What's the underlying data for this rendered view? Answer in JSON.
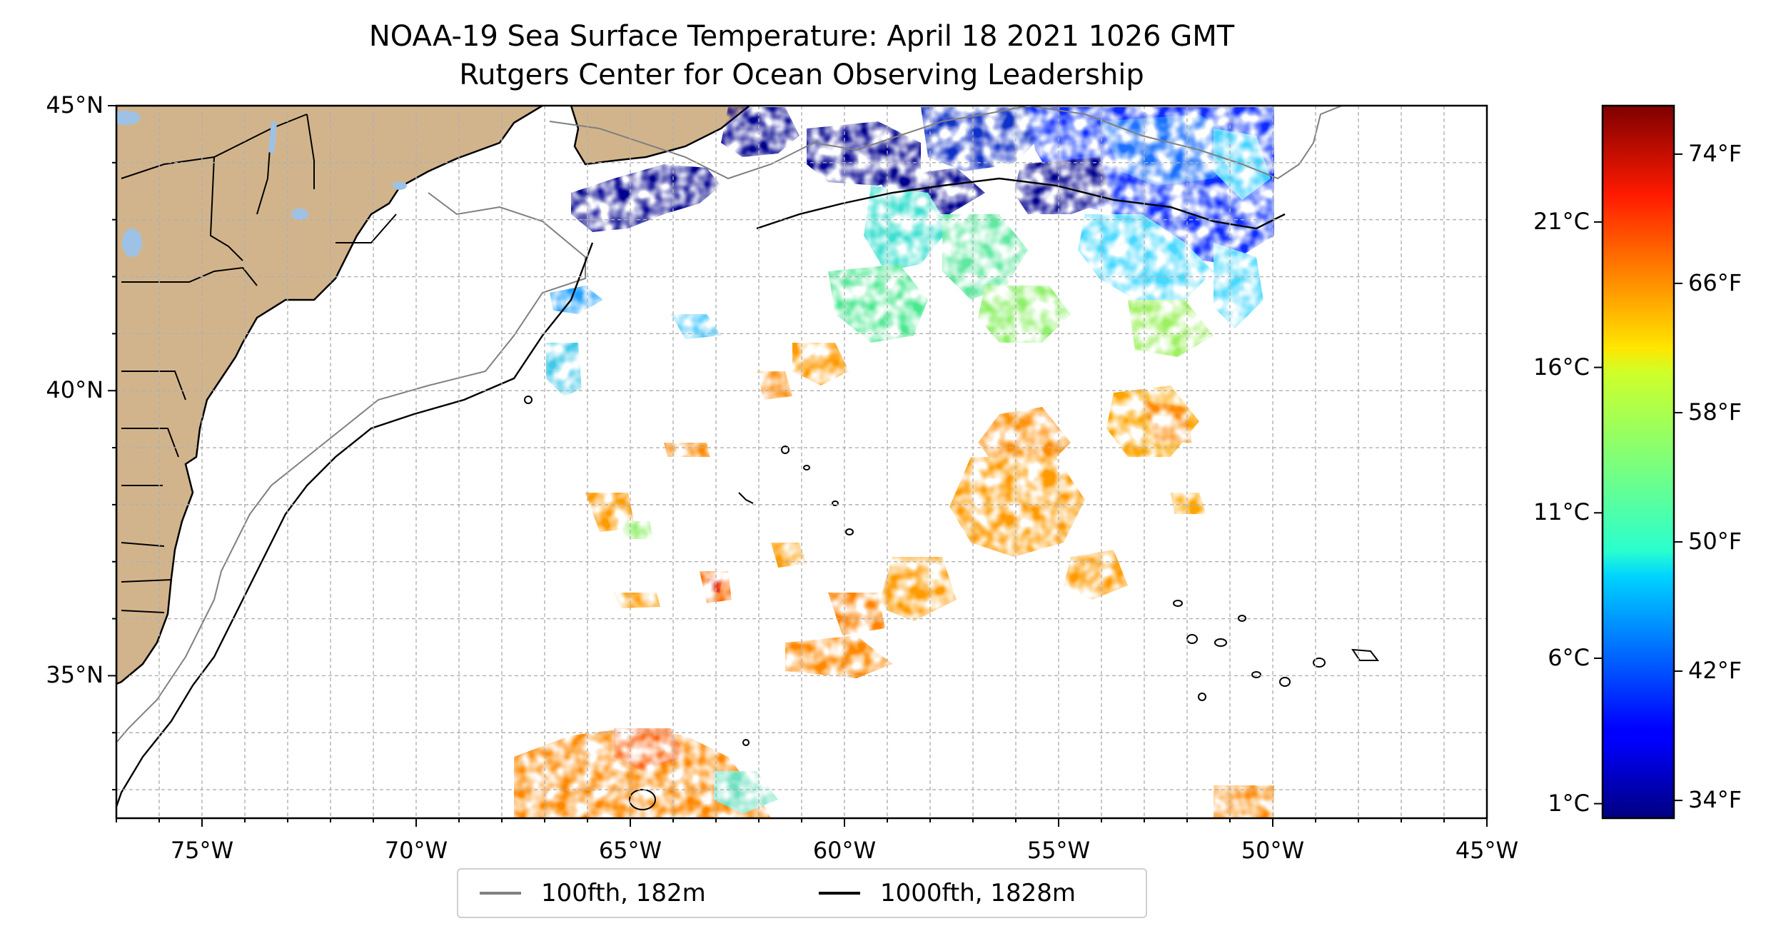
{
  "map": {
    "title": "NOAA-19 Sea Surface Temperature: April 18 2021 1026 GMT",
    "subtitle": "Rutgers Center for Ocean Observing Leadership",
    "lon_range": [
      -77,
      -45
    ],
    "lat_range": [
      32.5,
      45
    ],
    "lon_ticks": [
      {
        "value": -75,
        "label": "75°W"
      },
      {
        "value": -70,
        "label": "70°W"
      },
      {
        "value": -65,
        "label": "65°W"
      },
      {
        "value": -60,
        "label": "60°W"
      },
      {
        "value": -55,
        "label": "55°W"
      },
      {
        "value": -50,
        "label": "50°W"
      },
      {
        "value": -45,
        "label": "45°W"
      }
    ],
    "lat_ticks": [
      {
        "value": 45,
        "label": "45°N"
      },
      {
        "value": 40,
        "label": "40°N"
      },
      {
        "value": 35,
        "label": "35°N"
      }
    ],
    "grid": true,
    "land_color": "#d2b48c",
    "lake_color": "#9ec2e6"
  },
  "colorbar": {
    "colormap": "jet",
    "celsius_ticks": [
      {
        "value": 1,
        "label": "1°C"
      },
      {
        "value": 6,
        "label": "6°C"
      },
      {
        "value": 11,
        "label": "11°C"
      },
      {
        "value": 16,
        "label": "16°C"
      },
      {
        "value": 21,
        "label": "21°C"
      }
    ],
    "fahrenheit_ticks": [
      {
        "value": 34,
        "label": "34°F"
      },
      {
        "value": 42,
        "label": "42°F"
      },
      {
        "value": 50,
        "label": "50°F"
      },
      {
        "value": 58,
        "label": "58°F"
      },
      {
        "value": 66,
        "label": "66°F"
      },
      {
        "value": 74,
        "label": "74°F"
      }
    ]
  },
  "legend": {
    "items": [
      {
        "label": "100fth, 182m",
        "color": "#808080"
      },
      {
        "label": "1000fth, 1828m",
        "color": "#000000"
      }
    ]
  }
}
